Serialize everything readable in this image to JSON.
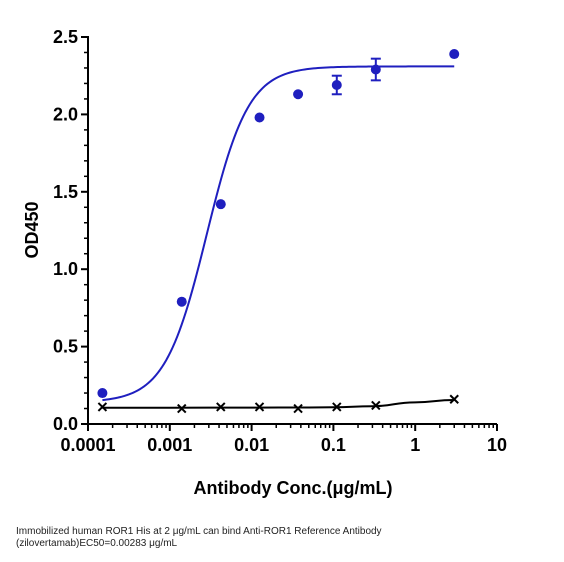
{
  "chart_data": {
    "type": "scatter",
    "title": "",
    "xlabel": "Antibody Conc.(μg/mL)",
    "ylabel": "OD450",
    "xscale": "log",
    "xlim": [
      0.0001,
      10
    ],
    "ylim": [
      0,
      2.5
    ],
    "xticks": [
      0.0001,
      0.001,
      0.01,
      0.1,
      1,
      10
    ],
    "xtick_labels": [
      "0.0001",
      "0.001",
      "0.01",
      "0.1",
      "1",
      "10"
    ],
    "yticks": [
      0,
      0.5,
      1,
      1.5,
      2,
      2.5
    ],
    "ytick_labels": [
      "0.0",
      "0.5",
      "1.0",
      "1.5",
      "2.0",
      "2.5"
    ],
    "grid": false,
    "legend": "none",
    "series": [
      {
        "color": "#1f1fbf",
        "marker": "circle",
        "x": [
          0.00015,
          0.0014,
          0.0042,
          0.0125,
          0.037,
          0.11,
          0.33,
          3.0
        ],
        "y": [
          0.2,
          0.79,
          1.42,
          1.98,
          2.13,
          2.19,
          2.29,
          2.39
        ],
        "error": [
          0,
          0,
          0,
          0,
          0,
          0.06,
          0.07,
          0
        ],
        "fit": {
          "type": "4PL",
          "bottom": 0.14,
          "top": 2.31,
          "ec50": 0.00283,
          "hill": 1.7
        }
      },
      {
        "color": "#000000",
        "marker": "x",
        "x": [
          0.00015,
          0.0014,
          0.0042,
          0.0125,
          0.037,
          0.11,
          0.33,
          3.0
        ],
        "y": [
          0.11,
          0.1,
          0.11,
          0.11,
          0.1,
          0.11,
          0.12,
          0.16
        ],
        "error": [
          0,
          0,
          0,
          0,
          0,
          0,
          0,
          0
        ],
        "fit": {
          "type": "curve",
          "x": [
            0.00015,
            0.001,
            0.01,
            0.05,
            0.1,
            0.3,
            1,
            3.0
          ],
          "y": [
            0.105,
            0.105,
            0.106,
            0.107,
            0.108,
            0.115,
            0.14,
            0.155
          ]
        }
      }
    ]
  },
  "caption": {
    "line1": "Immobilized human ROR1 His at 2  μg/mL can bind  Anti-ROR1 Reference Antibody",
    "line2": "(zilovertamab)EC50=0.00283 μg/mL"
  }
}
